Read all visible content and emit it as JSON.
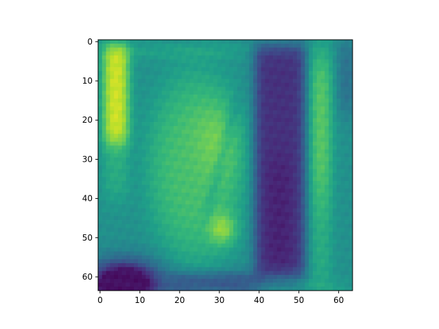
{
  "chart_data": {
    "type": "heatmap",
    "title": "",
    "xlabel": "",
    "ylabel": "",
    "colormap": "viridis",
    "xlim": [
      -0.5,
      63.5
    ],
    "ylim": [
      63.5,
      -0.5
    ],
    "y_axis_inverted": true,
    "shape": [
      64,
      64
    ],
    "x_ticks": [
      0,
      10,
      20,
      30,
      40,
      50,
      60
    ],
    "y_ticks": [
      0,
      10,
      20,
      30,
      40,
      50,
      60
    ],
    "x_tick_labels": [
      "0",
      "10",
      "20",
      "30",
      "40",
      "50",
      "60"
    ],
    "y_tick_labels": [
      "0",
      "10",
      "20",
      "30",
      "40",
      "50",
      "60"
    ],
    "grid": false,
    "legend": "none",
    "value_range": [
      0,
      1
    ],
    "regions": [
      {
        "label": "background",
        "value": 0.5
      },
      {
        "label": "bright left column",
        "value": 0.95,
        "cols": [
          1,
          7
        ],
        "rows": [
          2,
          26
        ]
      },
      {
        "label": "lit face area",
        "value": 0.72,
        "cols": [
          14,
          36
        ],
        "rows": [
          10,
          58
        ]
      },
      {
        "label": "face highlight",
        "value": 0.9,
        "cols": [
          28,
          34
        ],
        "rows": [
          44,
          52
        ]
      },
      {
        "label": "dark band",
        "value": 0.12,
        "cols": [
          39,
          52
        ],
        "rows": [
          2,
          60
        ]
      },
      {
        "label": "bright right stripe",
        "value": 0.78,
        "cols": [
          53,
          58
        ],
        "rows": [
          5,
          35
        ]
      },
      {
        "label": "dark bottom-left corner",
        "value": 0.02,
        "cols": [
          0,
          15
        ],
        "rows": [
          55,
          63
        ]
      }
    ]
  }
}
